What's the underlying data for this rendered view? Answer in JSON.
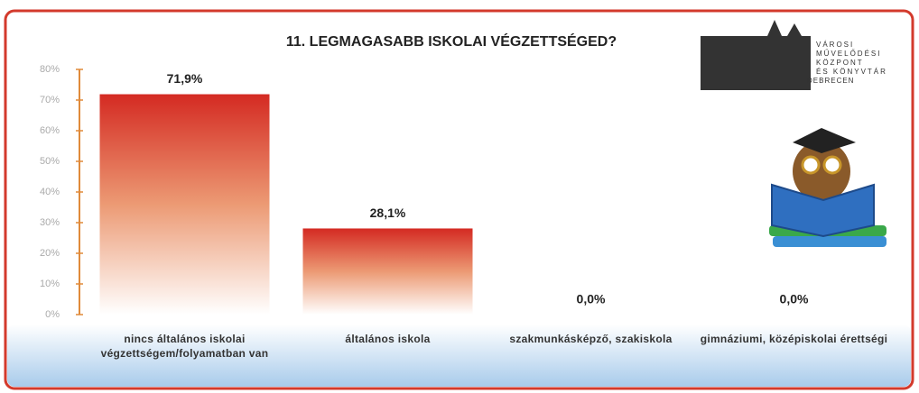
{
  "chart_data": {
    "type": "bar",
    "title": "11. LEGMAGASABB ISKOLAI VÉGZETTSÉGED?",
    "categories": [
      "nincs általános iskolai végzettségem/folyamatban van",
      "általános iskola",
      "szakmunkásképző, szakiskola",
      "gimnáziumi, középiskolai érettségi"
    ],
    "values": [
      71.9,
      28.1,
      0,
      0
    ],
    "value_labels": [
      "71,9%",
      "28,1%",
      "0,0%",
      "0,0%"
    ],
    "color": "#d42a22",
    "ylim": [
      0,
      80
    ],
    "yticks": [
      {
        "value": 0,
        "label": "0%"
      },
      {
        "value": 10,
        "label": "10%"
      },
      {
        "value": 20,
        "label": "20%"
      },
      {
        "value": 30,
        "label": "30%"
      },
      {
        "value": 40,
        "label": "40%"
      },
      {
        "value": 50,
        "label": "50%"
      },
      {
        "value": 60,
        "label": "60%"
      },
      {
        "value": 70,
        "label": "70%"
      },
      {
        "value": 80,
        "label": "80%"
      }
    ],
    "grid": false
  },
  "logo": {
    "lines": [
      "VÁROSI",
      "MŰVELŐDÉSI",
      "KÖZPONT",
      "ÉS KÖNYVTÁR",
      "DEBRECEN"
    ]
  }
}
